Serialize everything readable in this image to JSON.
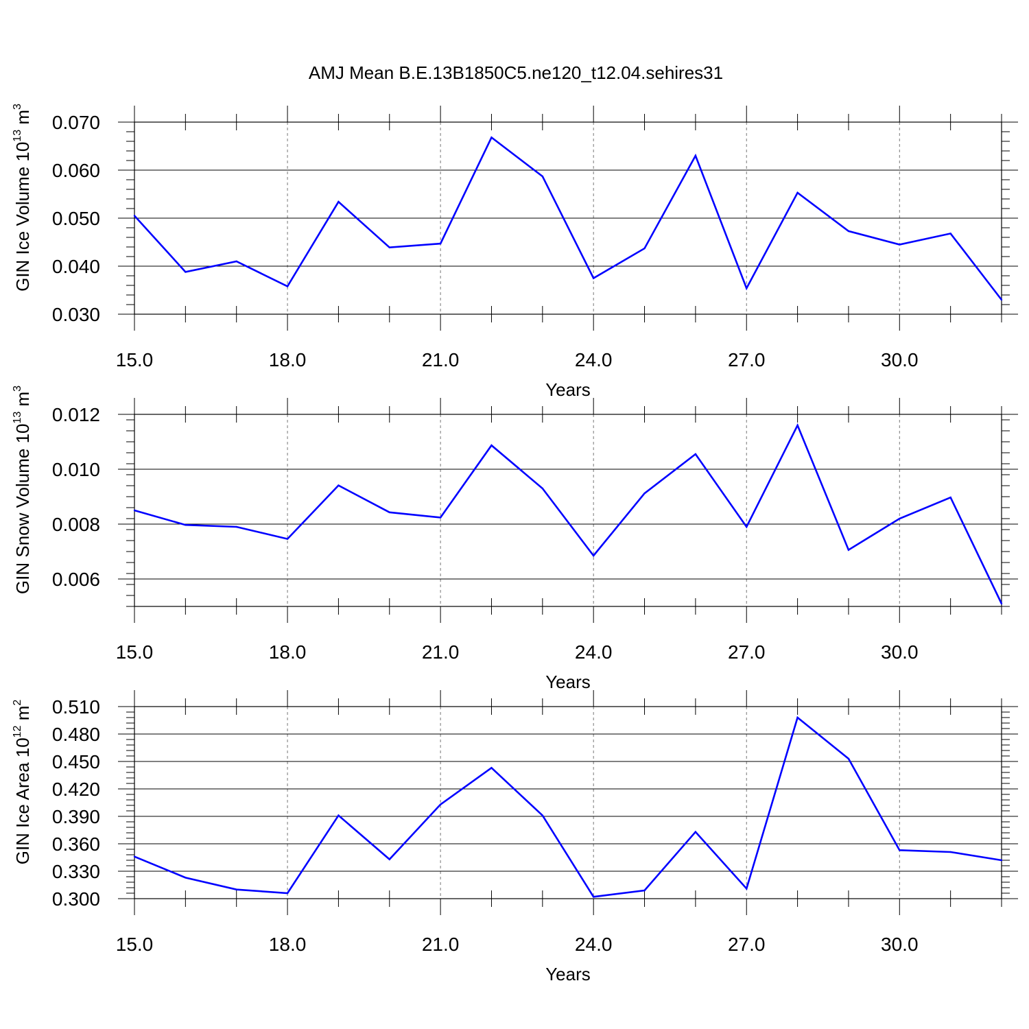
{
  "title": "AMJ Mean B.E.13B1850C5.ne120_t12.04.sehires31",
  "line_color": "#0000ff",
  "chart_data": [
    {
      "type": "line",
      "xlabel": "Years",
      "ylabel_main": "GIN Ice Volume 10",
      "ylabel_exp": "13",
      "ylabel_unit": " m",
      "ylabel_unit_exp": "3",
      "xlim": [
        15,
        32
      ],
      "ylim": [
        0.03,
        0.07
      ],
      "xticks": [
        "15.0",
        "18.0",
        "21.0",
        "24.0",
        "27.0",
        "30.0"
      ],
      "yticks": [
        "0.030",
        "0.040",
        "0.050",
        "0.060",
        "0.070"
      ],
      "x": [
        15,
        16,
        17,
        18,
        19,
        20,
        21,
        22,
        23,
        24,
        25,
        26,
        27,
        28,
        29,
        30,
        31,
        32
      ],
      "values": [
        0.0505,
        0.0388,
        0.041,
        0.0358,
        0.0534,
        0.0439,
        0.0447,
        0.0668,
        0.0587,
        0.0375,
        0.0437,
        0.063,
        0.0354,
        0.0553,
        0.0473,
        0.0445,
        0.0468,
        0.033
      ]
    },
    {
      "type": "line",
      "xlabel": "Years",
      "ylabel_main": "GIN Snow Volume 10",
      "ylabel_exp": "13",
      "ylabel_unit": " m",
      "ylabel_unit_exp": "3",
      "xlim": [
        15,
        32
      ],
      "ylim": [
        0.005,
        0.012
      ],
      "xticks": [
        "15.0",
        "18.0",
        "21.0",
        "24.0",
        "27.0",
        "30.0"
      ],
      "yticks": [
        "0.006",
        "0.008",
        "0.010",
        "0.012"
      ],
      "x": [
        15,
        16,
        17,
        18,
        19,
        20,
        21,
        22,
        23,
        24,
        25,
        26,
        27,
        28,
        29,
        30,
        31,
        32
      ],
      "values": [
        0.0085,
        0.00797,
        0.0079,
        0.00746,
        0.00941,
        0.00843,
        0.00824,
        0.01087,
        0.0093,
        0.00685,
        0.00912,
        0.01055,
        0.0079,
        0.0116,
        0.00706,
        0.0082,
        0.00897,
        0.0051
      ]
    },
    {
      "type": "line",
      "xlabel": "Years",
      "ylabel_main": "GIN Ice Area 10",
      "ylabel_exp": "12",
      "ylabel_unit": " m",
      "ylabel_unit_exp": "2",
      "xlim": [
        15,
        32
      ],
      "ylim": [
        0.3,
        0.51
      ],
      "xticks": [
        "15.0",
        "18.0",
        "21.0",
        "24.0",
        "27.0",
        "30.0"
      ],
      "yticks": [
        "0.300",
        "0.330",
        "0.360",
        "0.390",
        "0.420",
        "0.450",
        "0.480",
        "0.510"
      ],
      "x": [
        15,
        16,
        17,
        18,
        19,
        20,
        21,
        22,
        23,
        24,
        25,
        26,
        27,
        28,
        29,
        30,
        31,
        32
      ],
      "values": [
        0.346,
        0.323,
        0.31,
        0.306,
        0.391,
        0.343,
        0.403,
        0.443,
        0.391,
        0.302,
        0.309,
        0.373,
        0.311,
        0.498,
        0.453,
        0.353,
        0.351,
        0.342
      ]
    }
  ]
}
